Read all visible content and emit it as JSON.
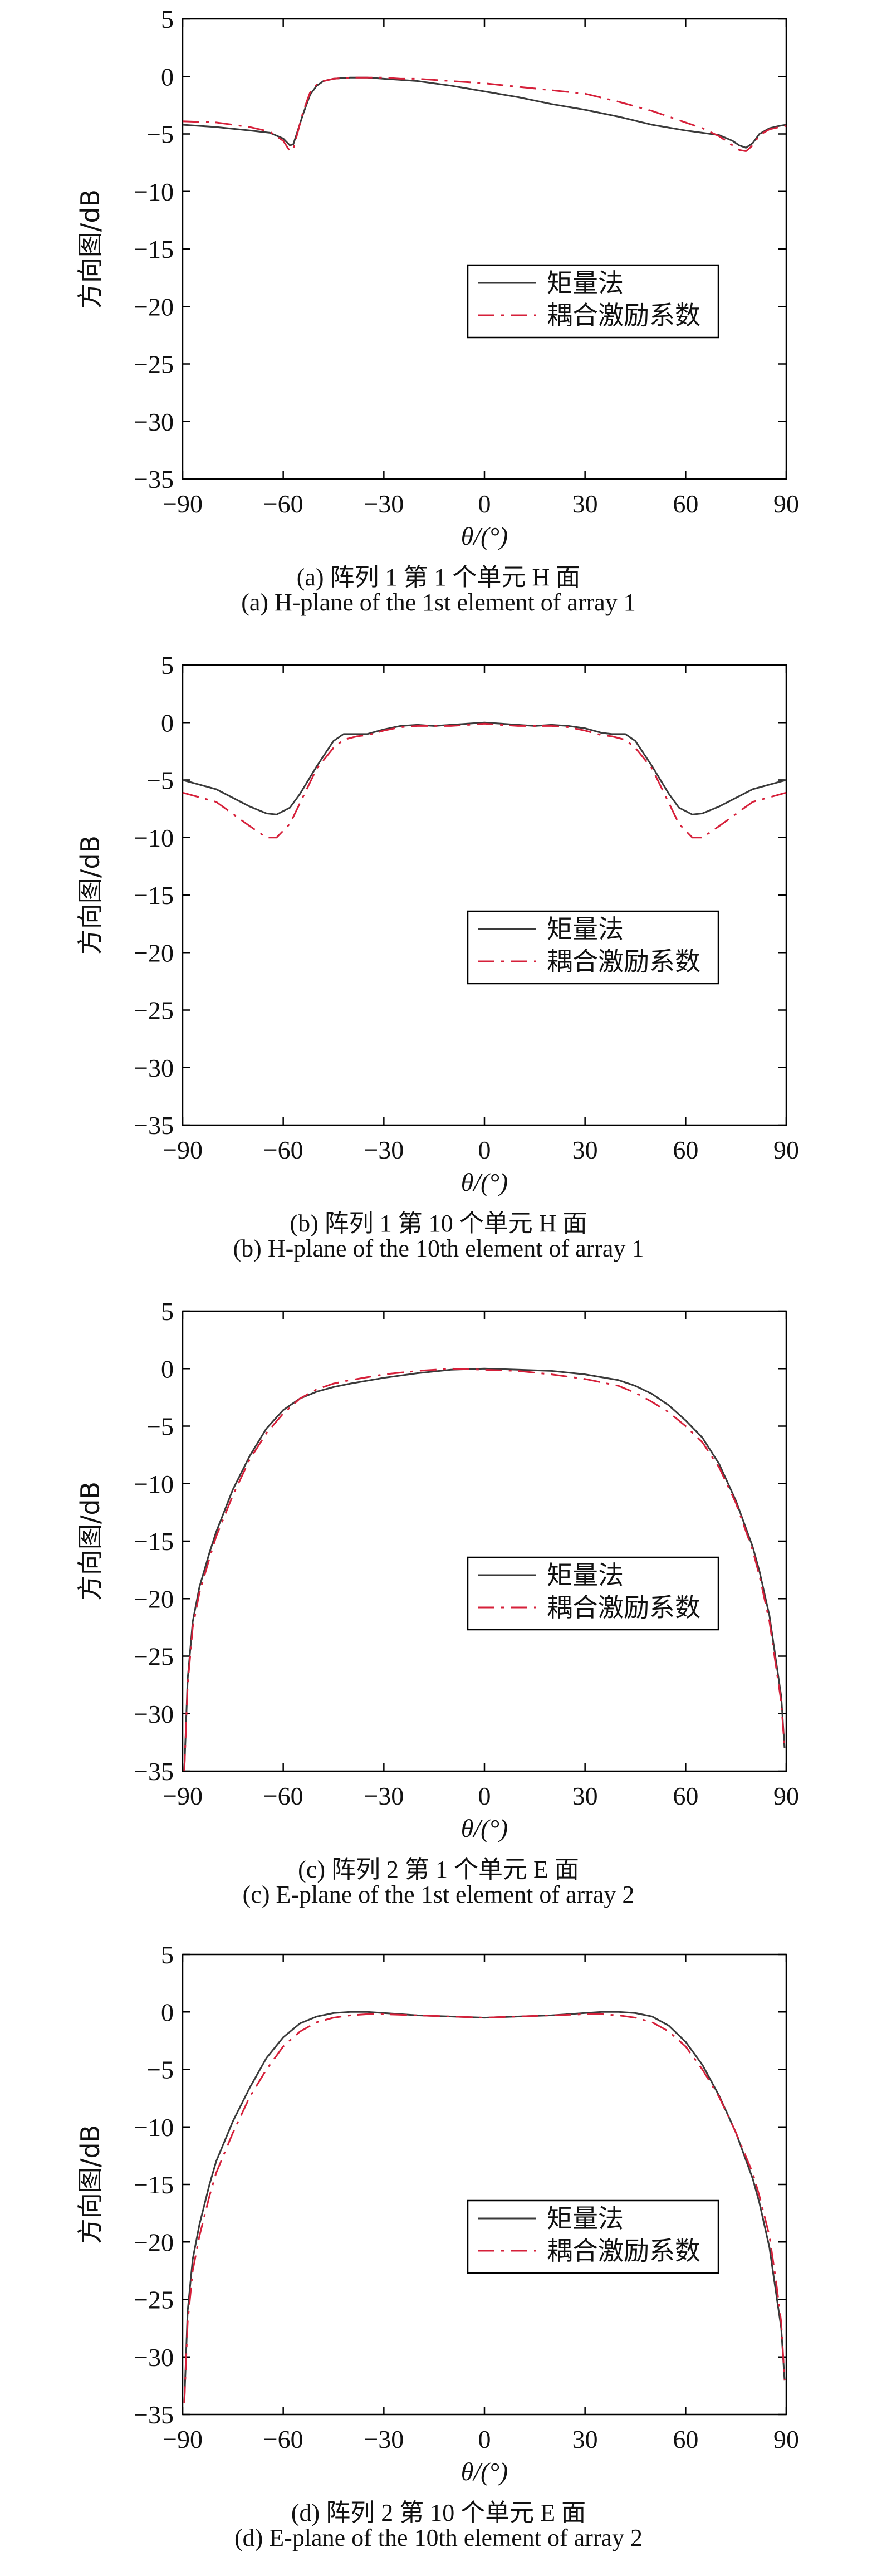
{
  "figure": {
    "legend_labels": [
      "矩量法",
      "耦合激励系数"
    ],
    "colors": {
      "mom": "#3a3a3a",
      "coupling": "#d6203a",
      "axis": "#000000"
    }
  },
  "chart_data": [
    {
      "type": "line",
      "caption_cn": "(a) 阵列 1 第 1 个单元 H 面",
      "caption_en": "(a) H-plane of the 1st element of array 1",
      "xlabel": "θ/(°)",
      "ylabel": "方向图/dB",
      "xlim": [
        -90,
        90
      ],
      "ylim": [
        -35,
        5
      ],
      "xticks": [
        -90,
        -60,
        -30,
        0,
        30,
        60,
        90
      ],
      "yticks": [
        5,
        0,
        -5,
        -10,
        -15,
        -20,
        -25,
        -30,
        -35
      ],
      "legend_position": "right-middle",
      "grid": false,
      "series": [
        {
          "name": "矩量法",
          "style": "solid",
          "x": [
            -90,
            -80,
            -70,
            -64,
            -60,
            -58,
            -57,
            -56,
            -54,
            -52,
            -50,
            -48,
            -45,
            -40,
            -35,
            -30,
            -25,
            -20,
            -10,
            0,
            10,
            20,
            30,
            40,
            50,
            60,
            65,
            70,
            74,
            76,
            78,
            80,
            82,
            85,
            88,
            90
          ],
          "y": [
            -4.2,
            -4.4,
            -4.7,
            -4.9,
            -5.4,
            -6.0,
            -5.9,
            -5.0,
            -3.2,
            -1.6,
            -0.8,
            -0.4,
            -0.2,
            -0.1,
            -0.1,
            -0.2,
            -0.3,
            -0.4,
            -0.8,
            -1.3,
            -1.8,
            -2.4,
            -2.9,
            -3.5,
            -4.2,
            -4.7,
            -4.9,
            -5.1,
            -5.6,
            -6.0,
            -6.2,
            -5.8,
            -5.0,
            -4.5,
            -4.3,
            -4.2
          ]
        },
        {
          "name": "耦合激励系数",
          "style": "dashdot",
          "x": [
            -90,
            -80,
            -70,
            -64,
            -60,
            -58,
            -57,
            -56,
            -54,
            -52,
            -50,
            -48,
            -45,
            -40,
            -35,
            -30,
            -25,
            -20,
            -10,
            0,
            10,
            20,
            30,
            40,
            50,
            60,
            65,
            70,
            74,
            76,
            78,
            80,
            82,
            85,
            88,
            90
          ],
          "y": [
            -3.9,
            -4.0,
            -4.4,
            -4.8,
            -5.6,
            -6.5,
            -6.3,
            -5.2,
            -3.0,
            -1.4,
            -0.7,
            -0.4,
            -0.2,
            -0.1,
            -0.1,
            -0.1,
            -0.2,
            -0.2,
            -0.4,
            -0.6,
            -0.9,
            -1.2,
            -1.5,
            -2.2,
            -3.0,
            -4.0,
            -4.5,
            -5.2,
            -6.0,
            -6.4,
            -6.5,
            -6.0,
            -5.1,
            -4.6,
            -4.4,
            -4.3
          ]
        }
      ]
    },
    {
      "type": "line",
      "caption_cn": "(b) 阵列 1 第 10 个单元 H 面",
      "caption_en": "(b) H-plane of the 10th element of array 1",
      "xlabel": "θ/(°)",
      "ylabel": "方向图/dB",
      "xlim": [
        -90,
        90
      ],
      "ylim": [
        -35,
        5
      ],
      "xticks": [
        -90,
        -60,
        -30,
        0,
        30,
        60,
        90
      ],
      "yticks": [
        5,
        0,
        -5,
        -10,
        -15,
        -20,
        -25,
        -30,
        -35
      ],
      "legend_position": "right-middle",
      "grid": false,
      "series": [
        {
          "name": "矩量法",
          "style": "solid",
          "x": [
            -90,
            -80,
            -70,
            -65,
            -62,
            -58,
            -55,
            -50,
            -45,
            -42,
            -38,
            -35,
            -30,
            -25,
            -20,
            -15,
            -10,
            -5,
            0,
            5,
            10,
            15,
            20,
            25,
            30,
            35,
            38,
            42,
            45,
            50,
            55,
            58,
            62,
            65,
            70,
            80,
            90
          ],
          "y": [
            -5.0,
            -5.8,
            -7.3,
            -7.9,
            -8.0,
            -7.4,
            -6.2,
            -3.8,
            -1.6,
            -1.0,
            -1.0,
            -1.0,
            -0.6,
            -0.3,
            -0.2,
            -0.3,
            -0.2,
            -0.1,
            0,
            -0.1,
            -0.2,
            -0.3,
            -0.2,
            -0.3,
            -0.5,
            -0.9,
            -1.0,
            -1.0,
            -1.6,
            -3.8,
            -6.2,
            -7.4,
            -8.0,
            -7.9,
            -7.3,
            -5.8,
            -5.0
          ]
        },
        {
          "name": "耦合激励系数",
          "style": "dashdot",
          "x": [
            -90,
            -80,
            -70,
            -65,
            -62,
            -58,
            -55,
            -50,
            -45,
            -42,
            -38,
            -35,
            -30,
            -25,
            -20,
            -15,
            -10,
            -5,
            0,
            5,
            10,
            15,
            20,
            25,
            30,
            35,
            38,
            42,
            45,
            50,
            55,
            58,
            62,
            65,
            70,
            80,
            90
          ],
          "y": [
            -6.1,
            -6.9,
            -9.0,
            -10.0,
            -10.0,
            -8.8,
            -7.0,
            -4.0,
            -2.2,
            -1.5,
            -1.2,
            -1.1,
            -0.7,
            -0.4,
            -0.3,
            -0.3,
            -0.3,
            -0.2,
            -0.1,
            -0.2,
            -0.3,
            -0.3,
            -0.3,
            -0.4,
            -0.7,
            -1.1,
            -1.2,
            -1.5,
            -2.2,
            -4.0,
            -7.0,
            -8.8,
            -10.0,
            -10.0,
            -9.0,
            -6.9,
            -6.1
          ]
        }
      ]
    },
    {
      "type": "line",
      "caption_cn": "(c) 阵列 2 第 1 个单元 E 面",
      "caption_en": "(c) E-plane of the 1st element of array 2",
      "xlabel": "θ/(°)",
      "ylabel": "方向图/dB",
      "xlim": [
        -90,
        90
      ],
      "ylim": [
        -35,
        5
      ],
      "xticks": [
        -90,
        -60,
        -30,
        0,
        30,
        60,
        90
      ],
      "yticks": [
        5,
        0,
        -5,
        -10,
        -15,
        -20,
        -25,
        -30,
        -35
      ],
      "legend_position": "right-middle",
      "grid": false,
      "series": [
        {
          "name": "矩量法",
          "style": "solid",
          "x": [
            -89.5,
            -88.5,
            -87,
            -85,
            -82,
            -80,
            -75,
            -70,
            -65,
            -60,
            -55,
            -50,
            -45,
            -40,
            -30,
            -20,
            -10,
            0,
            10,
            20,
            30,
            40,
            45,
            50,
            55,
            60,
            65,
            70,
            75,
            80,
            82,
            85,
            87,
            88.5,
            89.5
          ],
          "y": [
            -35,
            -27,
            -22,
            -19,
            -16,
            -14.2,
            -10.5,
            -7.6,
            -5.2,
            -3.6,
            -2.6,
            -2.0,
            -1.6,
            -1.3,
            -0.8,
            -0.4,
            -0.1,
            0,
            -0.1,
            -0.2,
            -0.5,
            -1.0,
            -1.5,
            -2.2,
            -3.2,
            -4.5,
            -6.0,
            -8.3,
            -11.5,
            -15.5,
            -17.6,
            -21.5,
            -25.5,
            -28.5,
            -33
          ]
        },
        {
          "name": "耦合激励系数",
          "style": "dashdot",
          "x": [
            -89.5,
            -88.5,
            -87,
            -85,
            -82,
            -80,
            -75,
            -70,
            -65,
            -60,
            -55,
            -50,
            -45,
            -40,
            -30,
            -20,
            -10,
            0,
            10,
            20,
            30,
            40,
            45,
            50,
            55,
            60,
            65,
            70,
            75,
            80,
            82,
            85,
            87,
            88.5,
            89.5
          ],
          "y": [
            -35,
            -27.5,
            -22.5,
            -19.5,
            -16.5,
            -14.6,
            -11.0,
            -7.9,
            -5.6,
            -3.9,
            -2.6,
            -1.8,
            -1.3,
            -1.0,
            -0.5,
            -0.2,
            0,
            -0.1,
            -0.2,
            -0.5,
            -0.9,
            -1.5,
            -2.1,
            -2.9,
            -3.8,
            -5.0,
            -6.4,
            -8.6,
            -11.7,
            -15.8,
            -18.0,
            -22.0,
            -26.0,
            -29.0,
            -33
          ]
        }
      ]
    },
    {
      "type": "line",
      "caption_cn": "(d) 阵列 2 第 10 个单元 E 面",
      "caption_en": "(d) E-plane of the 10th element of array 2",
      "xlabel": "θ/(°)",
      "ylabel": "方向图/dB",
      "xlim": [
        -90,
        90
      ],
      "ylim": [
        -35,
        5
      ],
      "xticks": [
        -90,
        -60,
        -30,
        0,
        30,
        60,
        90
      ],
      "yticks": [
        5,
        0,
        -5,
        -10,
        -15,
        -20,
        -25,
        -30,
        -35
      ],
      "legend_position": "right-middle",
      "grid": false,
      "series": [
        {
          "name": "矩量法",
          "style": "solid",
          "x": [
            -89.5,
            -88.5,
            -87,
            -85,
            -82,
            -80,
            -75,
            -70,
            -65,
            -60,
            -55,
            -50,
            -45,
            -40,
            -35,
            -30,
            -20,
            -10,
            0,
            10,
            20,
            30,
            35,
            40,
            45,
            50,
            55,
            60,
            65,
            70,
            75,
            80,
            82,
            85,
            87,
            88.5,
            89.5
          ],
          "y": [
            -34,
            -26,
            -21.5,
            -18.5,
            -15,
            -13,
            -9.5,
            -6.6,
            -4.0,
            -2.2,
            -1.0,
            -0.4,
            -0.1,
            0,
            0,
            -0.1,
            -0.3,
            -0.4,
            -0.5,
            -0.4,
            -0.3,
            -0.1,
            0,
            0,
            -0.1,
            -0.4,
            -1.2,
            -2.6,
            -4.6,
            -7.3,
            -10.5,
            -14.5,
            -16.6,
            -20.5,
            -24.5,
            -27.5,
            -32
          ]
        },
        {
          "name": "耦合激励系数",
          "style": "dashdot",
          "x": [
            -89.5,
            -88.5,
            -87,
            -85,
            -82,
            -80,
            -75,
            -70,
            -65,
            -60,
            -55,
            -50,
            -45,
            -40,
            -35,
            -30,
            -20,
            -10,
            0,
            10,
            20,
            30,
            35,
            40,
            45,
            50,
            55,
            60,
            65,
            70,
            75,
            80,
            82,
            85,
            87,
            88.5,
            89.5
          ],
          "y": [
            -34,
            -27,
            -22.5,
            -19.5,
            -16,
            -14,
            -10.5,
            -7.4,
            -5.0,
            -3.0,
            -1.7,
            -0.9,
            -0.5,
            -0.3,
            -0.2,
            -0.2,
            -0.3,
            -0.4,
            -0.5,
            -0.4,
            -0.3,
            -0.2,
            -0.2,
            -0.3,
            -0.5,
            -0.9,
            -1.7,
            -3.0,
            -5.0,
            -7.4,
            -10.5,
            -14.0,
            -16.0,
            -19.5,
            -23.5,
            -27,
            -32
          ]
        }
      ]
    }
  ]
}
